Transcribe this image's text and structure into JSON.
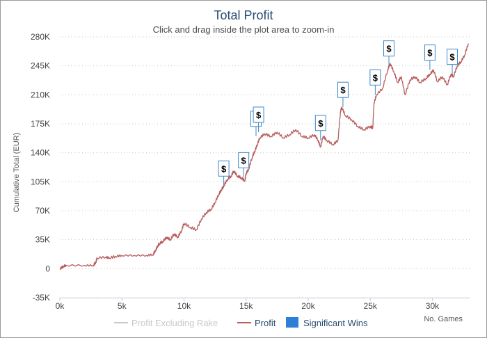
{
  "chart_data": {
    "type": "line",
    "title": "Total Profit",
    "subtitle": "Click and drag inside the plot area to zoom-in",
    "xlabel": "No. Games",
    "ylabel": "Cumulative Total (EUR)",
    "xlim": [
      0,
      33000
    ],
    "ylim": [
      -35000,
      280000
    ],
    "x_ticks": [
      0,
      5000,
      10000,
      15000,
      20000,
      25000,
      30000
    ],
    "x_tick_labels": [
      "0k",
      "5k",
      "10k",
      "15k",
      "20k",
      "25k",
      "30k"
    ],
    "y_ticks": [
      -35000,
      0,
      35000,
      70000,
      105000,
      140000,
      175000,
      210000,
      245000,
      280000
    ],
    "y_tick_labels": [
      "-35K",
      "0",
      "35K",
      "70K",
      "105K",
      "140K",
      "175K",
      "210K",
      "245K",
      "280K"
    ],
    "grid": true,
    "legend": "bottom",
    "colors": {
      "profit": "#b85c5c",
      "excl_rake": "#c8c8c8",
      "flag_border": "#3a87c8",
      "wins": "#2f7ed8",
      "title": "#274b6d"
    },
    "series": [
      {
        "name": "Profit",
        "x": [
          0,
          300,
          500,
          2000,
          2700,
          2900,
          3000,
          3700,
          4000,
          4500,
          5000,
          6000,
          7000,
          7500,
          7700,
          7900,
          8000,
          8300,
          8600,
          8900,
          9200,
          9500,
          9800,
          10000,
          10500,
          11000,
          11400,
          11800,
          12200,
          12500,
          12800,
          13000,
          13200,
          13500,
          13800,
          14000,
          14300,
          14600,
          14900,
          15000,
          15200,
          15500,
          15700,
          15900,
          16100,
          16500,
          17000,
          17500,
          18000,
          18500,
          19000,
          19500,
          20000,
          20500,
          20800,
          21000,
          21200,
          21500,
          22000,
          22400,
          22600,
          22700,
          23000,
          23500,
          24000,
          24500,
          25000,
          25200,
          25300,
          25500,
          26000,
          26400,
          26600,
          26900,
          27200,
          27500,
          27800,
          28200,
          28600,
          29000,
          29500,
          29800,
          30100,
          30400,
          30800,
          31200,
          31500,
          31700,
          32000,
          32300,
          32600,
          32900
        ],
        "y": [
          0,
          3000,
          4000,
          4000,
          4000,
          8000,
          13000,
          14000,
          13000,
          15000,
          16000,
          16000,
          16000,
          17000,
          22000,
          28000,
          30000,
          33000,
          38000,
          35000,
          42000,
          38000,
          46000,
          55000,
          50000,
          47000,
          60000,
          68000,
          72000,
          80000,
          90000,
          95000,
          100000,
          108000,
          112000,
          118000,
          112000,
          110000,
          106000,
          115000,
          120000,
          135000,
          142000,
          150000,
          158000,
          163000,
          160000,
          165000,
          158000,
          162000,
          168000,
          160000,
          158000,
          162000,
          155000,
          147000,
          160000,
          155000,
          150000,
          155000,
          190000,
          195000,
          185000,
          180000,
          172000,
          168000,
          172000,
          170000,
          200000,
          210000,
          218000,
          240000,
          248000,
          238000,
          225000,
          232000,
          210000,
          228000,
          232000,
          225000,
          230000,
          235000,
          240000,
          226000,
          232000,
          222000,
          235000,
          232000,
          245000,
          250000,
          258000,
          272000
        ]
      },
      {
        "name": "Profit Excluding Rake",
        "x": [],
        "y": []
      },
      {
        "name": "Significant Wins",
        "type": "flags",
        "x": [
          13200,
          14800,
          15800,
          16000,
          21000,
          22800,
          25400,
          26500,
          29800,
          31600
        ],
        "y": [
          100000,
          110000,
          160000,
          165000,
          155000,
          195000,
          210000,
          245000,
          240000,
          235000
        ],
        "labels": [
          "$",
          "$",
          "$",
          "$",
          "$",
          "$",
          "$",
          "$",
          "$",
          "$"
        ]
      }
    ]
  }
}
